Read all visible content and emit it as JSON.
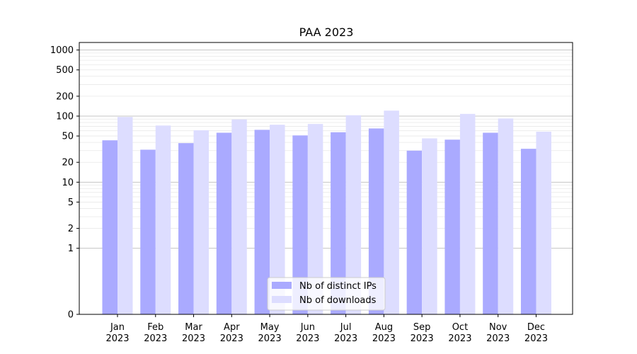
{
  "chart_data": {
    "type": "bar",
    "title": "PAA 2023",
    "xlabel": "",
    "ylabel": "",
    "y_scale": "symlog",
    "ylim": [
      0,
      1300
    ],
    "y_ticks": [
      0,
      1,
      2,
      5,
      10,
      20,
      50,
      100,
      200,
      500,
      1000
    ],
    "categories": [
      {
        "month": "Jan",
        "year": "2023"
      },
      {
        "month": "Feb",
        "year": "2023"
      },
      {
        "month": "Mar",
        "year": "2023"
      },
      {
        "month": "Apr",
        "year": "2023"
      },
      {
        "month": "May",
        "year": "2023"
      },
      {
        "month": "Jun",
        "year": "2023"
      },
      {
        "month": "Jul",
        "year": "2023"
      },
      {
        "month": "Aug",
        "year": "2023"
      },
      {
        "month": "Sep",
        "year": "2023"
      },
      {
        "month": "Oct",
        "year": "2023"
      },
      {
        "month": "Nov",
        "year": "2023"
      },
      {
        "month": "Dec",
        "year": "2023"
      }
    ],
    "series": [
      {
        "name": "Nb of distinct IPs",
        "color": "#aaaaff",
        "values": [
          43,
          31,
          39,
          56,
          62,
          51,
          57,
          65,
          30,
          44,
          56,
          32
        ]
      },
      {
        "name": "Nb of downloads",
        "color": "#ddddff",
        "values": [
          97,
          72,
          61,
          89,
          74,
          76,
          103,
          121,
          46,
          108,
          92,
          58
        ]
      }
    ],
    "grid": true,
    "legend_position": "lower-center"
  }
}
